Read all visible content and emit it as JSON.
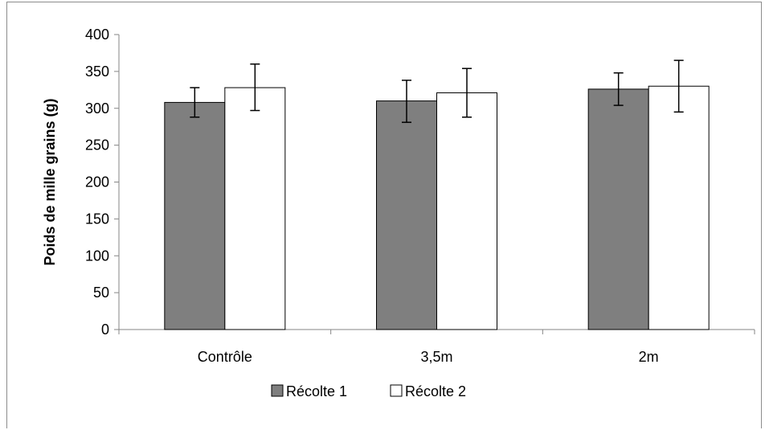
{
  "chart_data": {
    "type": "bar",
    "title": "",
    "xlabel": "",
    "ylabel": "Poids de mille grains (g)",
    "ylim": [
      0,
      400
    ],
    "yticks": [
      0,
      50,
      100,
      150,
      200,
      250,
      300,
      350,
      400
    ],
    "categories": [
      "Contrôle",
      "3,5m",
      "2m"
    ],
    "grid": false,
    "legend": "bottom",
    "series": [
      {
        "name": "Récolte 1",
        "color": "#7f7f7f",
        "values": [
          308,
          310,
          326
        ],
        "error_low": [
          288,
          281,
          304
        ],
        "error_high": [
          328,
          338,
          348
        ]
      },
      {
        "name": "Récolte 2",
        "color": "#ffffff",
        "values": [
          328,
          321,
          330
        ],
        "error_low": [
          297,
          288,
          295
        ],
        "error_high": [
          360,
          354,
          365
        ]
      }
    ]
  }
}
